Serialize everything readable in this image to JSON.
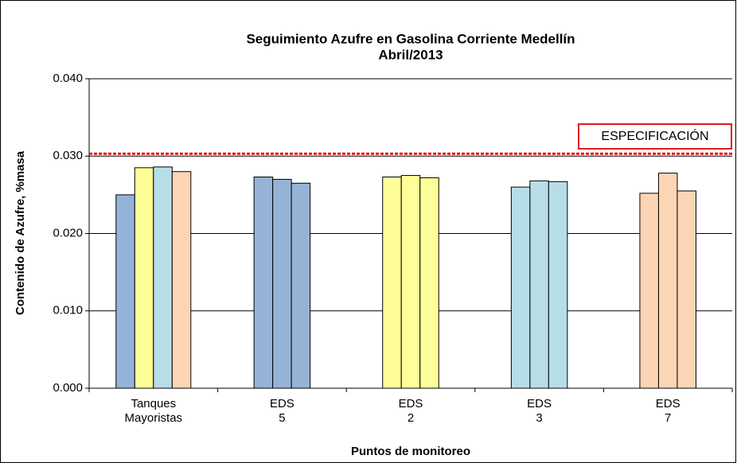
{
  "chart_data": {
    "type": "bar",
    "title": "Seguimiento Azufre en Gasolina Corriente Medellín",
    "subtitle": "Abril/2013",
    "ylabel": "Contenido de Azufre, %masa",
    "xlabel": "Puntos de monitoreo",
    "groups": [
      {
        "label": [
          "Tanques",
          "Mayoristas"
        ],
        "values": [
          0.025,
          0.0285,
          0.0286,
          0.028
        ],
        "colors": [
          "#95b3d7",
          "#ffff99",
          "#b7dee8",
          "#fcd5b4"
        ]
      },
      {
        "label": [
          "EDS",
          "5"
        ],
        "values": [
          0.0273,
          0.027,
          0.0265
        ],
        "colors": [
          "#95b3d7",
          "#95b3d7",
          "#95b3d7"
        ]
      },
      {
        "label": [
          "EDS",
          "2"
        ],
        "values": [
          0.0273,
          0.0275,
          0.0272
        ],
        "colors": [
          "#ffff99",
          "#ffff99",
          "#ffff99"
        ]
      },
      {
        "label": [
          "EDS",
          "3"
        ],
        "values": [
          0.026,
          0.0268,
          0.0267
        ],
        "colors": [
          "#b7dee8",
          "#b7dee8",
          "#b7dee8"
        ]
      },
      {
        "label": [
          "EDS",
          "7"
        ],
        "values": [
          0.0252,
          0.0278,
          0.0255
        ],
        "colors": [
          "#fcd5b4",
          "#fcd5b4",
          "#fcd5b4"
        ]
      }
    ],
    "ylim": [
      0,
      0.04
    ],
    "yticks": [
      {
        "value": 0,
        "label": "0.000"
      },
      {
        "value": 0.01,
        "label": "0.010"
      },
      {
        "value": 0.02,
        "label": "0.020"
      },
      {
        "value": 0.03,
        "label": "0.030"
      },
      {
        "value": 0.04,
        "label": "0.040"
      }
    ],
    "grid": true,
    "reference": {
      "value": 0.03,
      "label": "ESPECIFICACIÓN",
      "color": "#e31a1c"
    }
  }
}
